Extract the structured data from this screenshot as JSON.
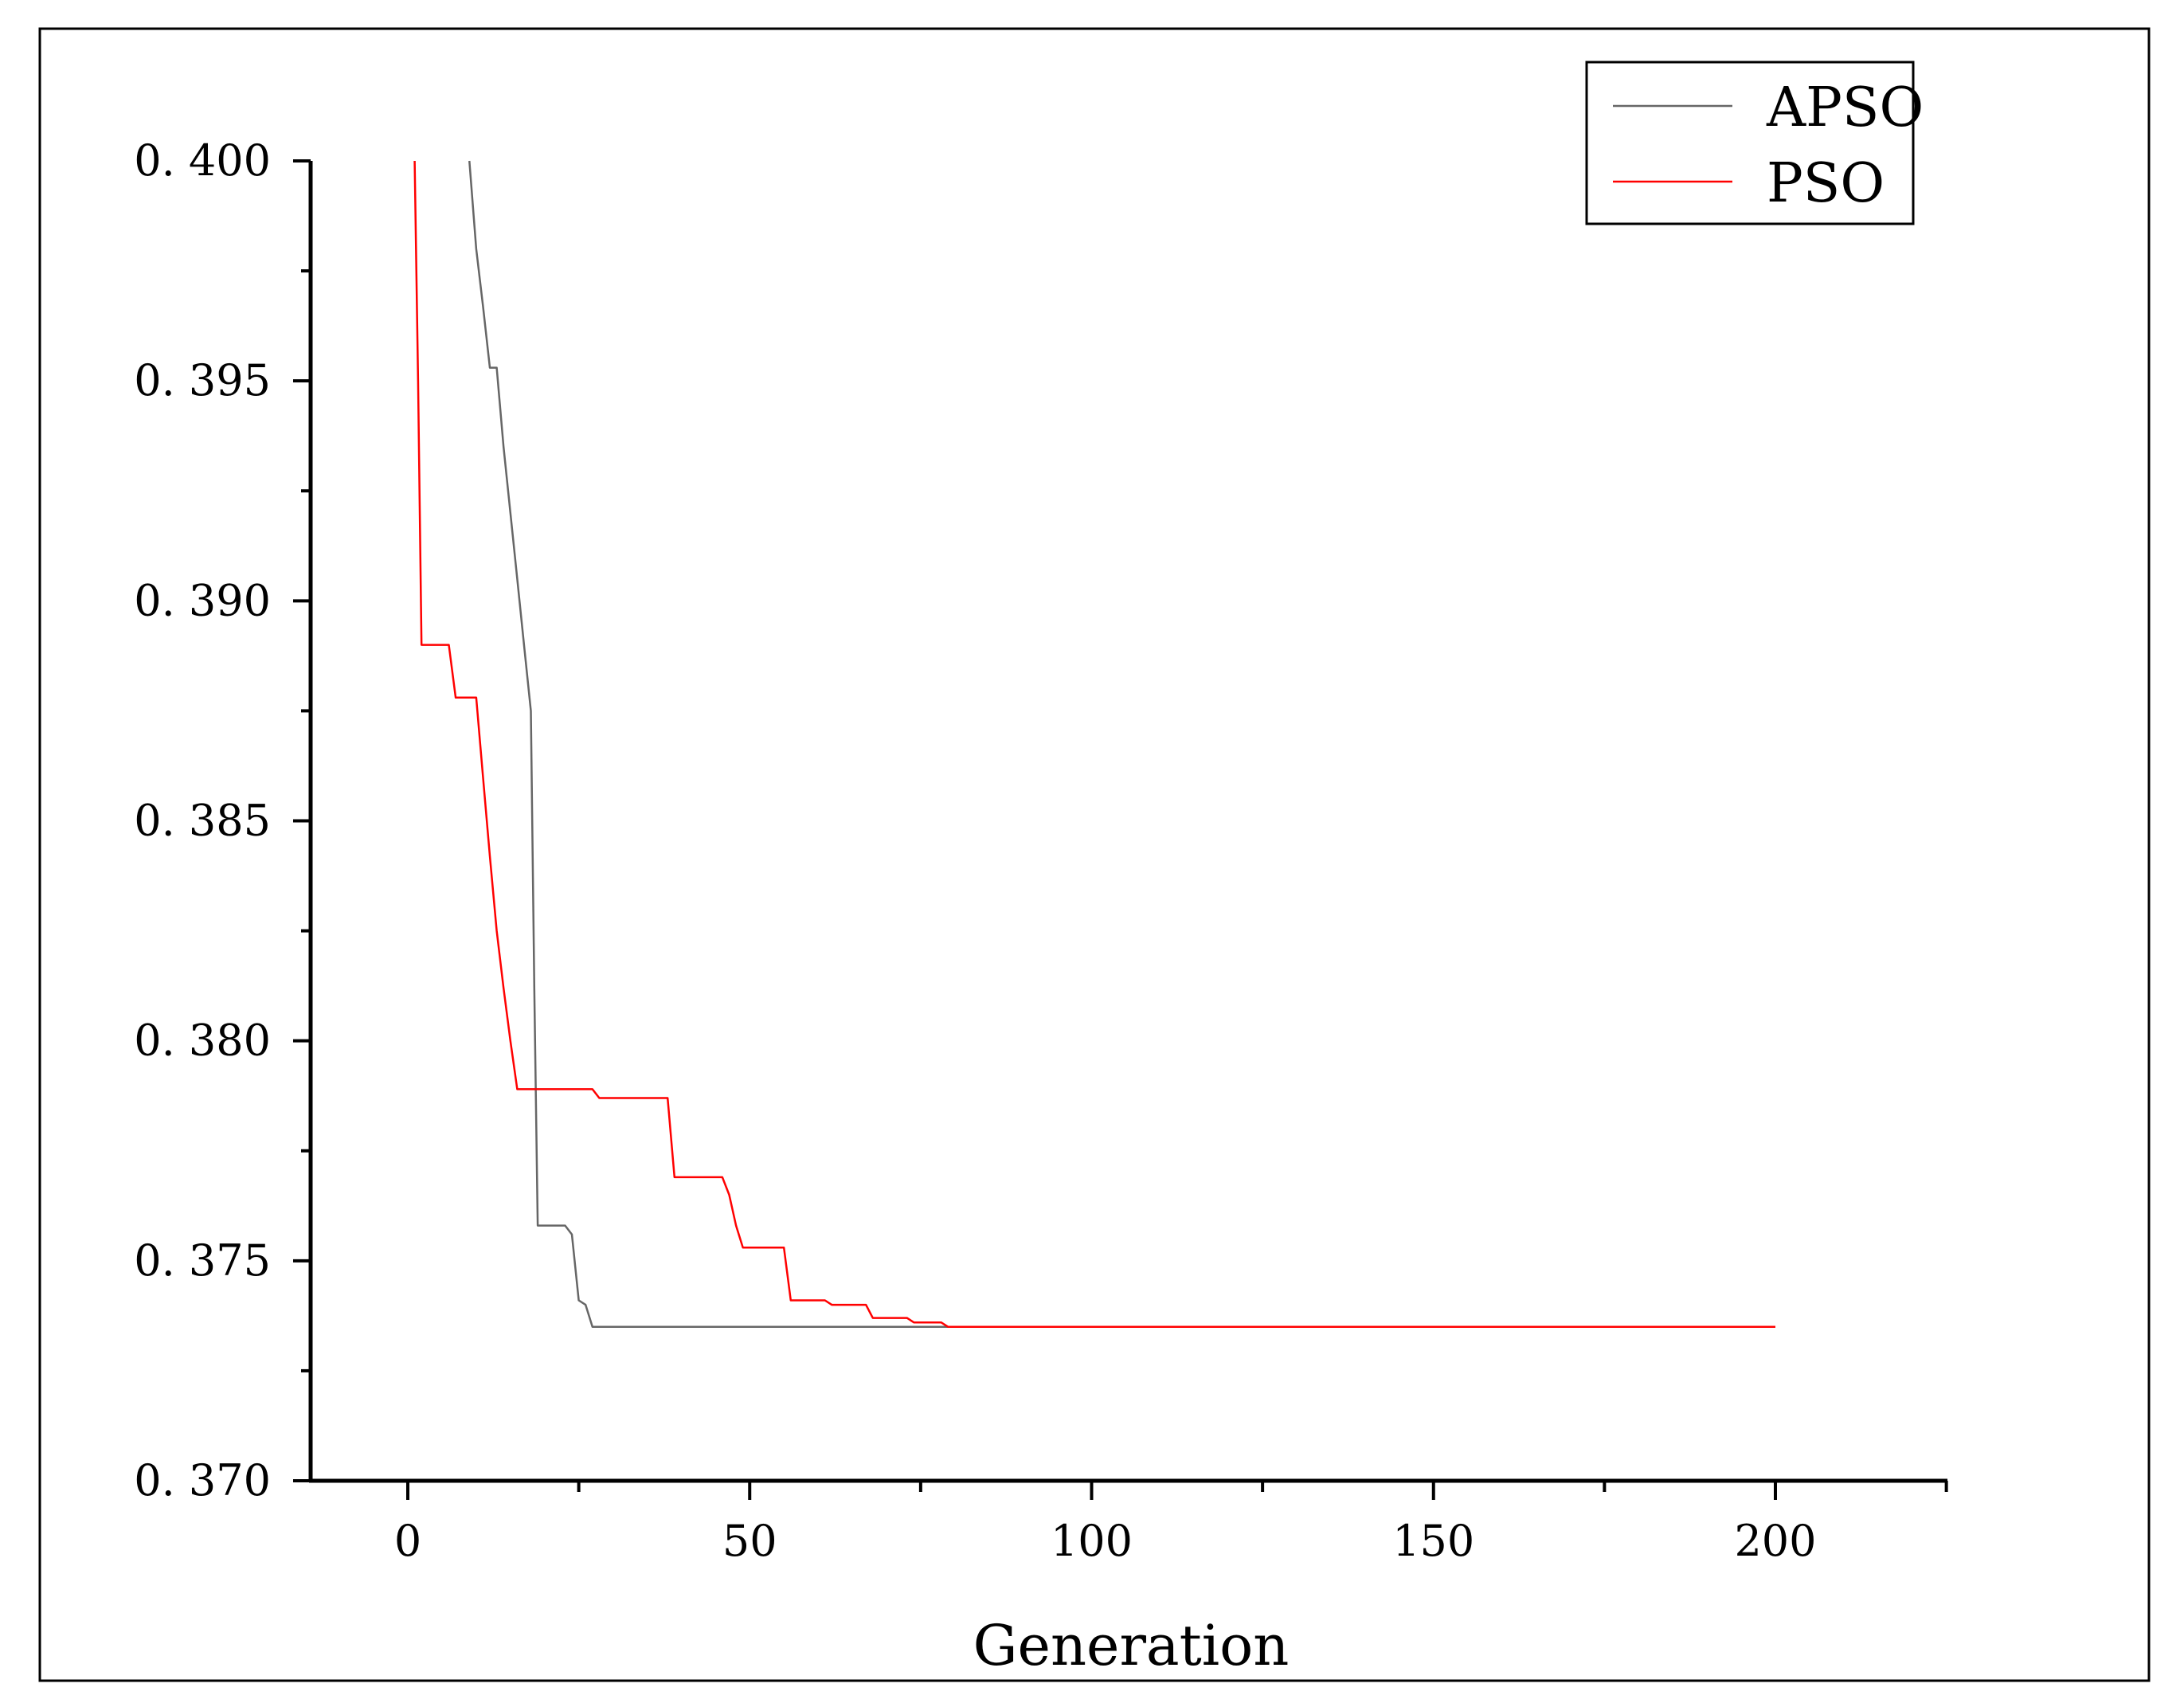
{
  "chart_data": {
    "type": "line",
    "title": "",
    "xlabel": "Generation",
    "ylabel": "",
    "xlim": [
      -14,
      225
    ],
    "ylim": [
      0.37,
      0.4
    ],
    "x_ticks": [
      0,
      50,
      100,
      150,
      200
    ],
    "x_tick_labels": [
      "0",
      "50",
      "100",
      "150",
      "200"
    ],
    "y_ticks": [
      0.37,
      0.375,
      0.38,
      0.385,
      0.39,
      0.395,
      0.4
    ],
    "y_tick_labels": [
      "0. 370",
      "0. 375",
      "0. 380",
      "0. 385",
      "0. 390",
      "0. 395",
      "0. 400"
    ],
    "grid": false,
    "legend_position": "top-right",
    "series": [
      {
        "name": "APSO",
        "color": "#666666",
        "x": [
          9,
          10,
          11,
          12,
          13,
          14,
          15,
          16,
          17,
          18,
          18.5,
          19,
          20,
          21,
          22,
          23,
          24,
          25,
          26,
          27,
          28,
          200
        ],
        "y": [
          0.4,
          0.398,
          0.3967,
          0.3953,
          0.3953,
          0.3935,
          0.392,
          0.3905,
          0.389,
          0.3875,
          0.3812,
          0.3758,
          0.3758,
          0.3758,
          0.3758,
          0.3758,
          0.3756,
          0.3741,
          0.374,
          0.3735,
          0.3735,
          0.3735
        ]
      },
      {
        "name": "PSO",
        "color": "#ff0000",
        "x": [
          1,
          1.5,
          2,
          6,
          7,
          8,
          10,
          11,
          12,
          13,
          14,
          15,
          16,
          17,
          27,
          28,
          38,
          39,
          46,
          47,
          48,
          49,
          55,
          56,
          61,
          62,
          67,
          68,
          73,
          74,
          78,
          79,
          200
        ],
        "y": [
          0.4,
          0.395,
          0.389,
          0.389,
          0.3878,
          0.3878,
          0.3878,
          0.386,
          0.3842,
          0.3825,
          0.3812,
          0.38,
          0.3789,
          0.3789,
          0.3789,
          0.3787,
          0.3787,
          0.3769,
          0.3769,
          0.3765,
          0.3758,
          0.3753,
          0.3753,
          0.3741,
          0.3741,
          0.374,
          0.374,
          0.3737,
          0.3737,
          0.3736,
          0.3736,
          0.3735,
          0.3735
        ]
      }
    ]
  }
}
